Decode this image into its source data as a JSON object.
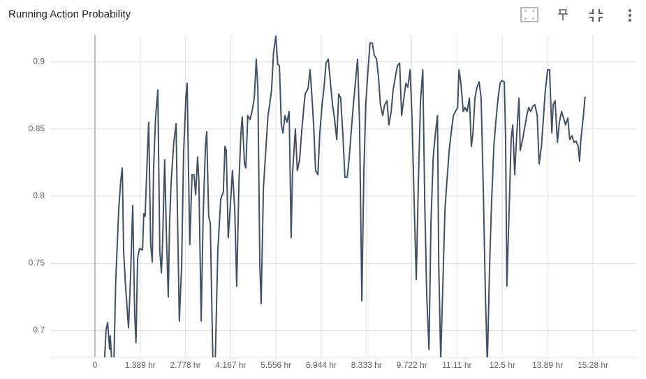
{
  "chart_data": {
    "type": "line",
    "title": "Running Action Probability",
    "color": "#425066",
    "grid": true,
    "xlim": [
      -1.37,
      16.63
    ],
    "ylim": [
      0.68,
      0.92
    ],
    "yticks": [
      0.7,
      0.75,
      0.8,
      0.85,
      0.9
    ],
    "xticks": [
      0,
      {
        "value": 1.389,
        "label": "1.389 hr"
      },
      {
        "value": 2.778,
        "label": "2.778 hr"
      },
      {
        "value": 4.167,
        "label": "4.167 hr"
      },
      {
        "value": 5.556,
        "label": "5.556 hr"
      },
      {
        "value": 6.944,
        "label": "6.944 hr"
      },
      {
        "value": 8.333,
        "label": "8.333 hr"
      },
      {
        "value": 9.722,
        "label": "9.722 hr"
      },
      {
        "value": 11.11,
        "label": "11.11 hr"
      },
      {
        "value": 12.5,
        "label": "12.5 hr"
      },
      {
        "value": 13.89,
        "label": "13.89 hr"
      },
      {
        "value": 15.28,
        "label": "15.28 hr"
      }
    ],
    "x": [
      0.3,
      0.34,
      0.39,
      0.45,
      0.47,
      0.51,
      0.58,
      0.64,
      0.73,
      0.79,
      0.84,
      0.88,
      0.94,
      1.03,
      1.09,
      1.16,
      1.22,
      1.26,
      1.31,
      1.37,
      1.46,
      1.5,
      1.54,
      1.61,
      1.65,
      1.71,
      1.76,
      1.8,
      1.86,
      1.93,
      1.99,
      2.04,
      2.08,
      2.14,
      2.19,
      2.25,
      2.29,
      2.34,
      2.42,
      2.49,
      2.53,
      2.59,
      2.66,
      2.72,
      2.79,
      2.83,
      2.87,
      2.91,
      2.98,
      3.04,
      3.09,
      3.15,
      3.19,
      3.26,
      3.32,
      3.39,
      3.43,
      3.49,
      3.54,
      3.62,
      3.69,
      3.77,
      3.86,
      3.94,
      3.99,
      4.03,
      4.09,
      4.16,
      4.22,
      4.29,
      4.35,
      4.42,
      4.48,
      4.52,
      4.59,
      4.63,
      4.69,
      4.76,
      4.82,
      4.89,
      4.95,
      5.0,
      5.06,
      5.1,
      5.17,
      5.25,
      5.31,
      5.36,
      5.42,
      5.48,
      5.55,
      5.61,
      5.66,
      5.72,
      5.77,
      5.83,
      5.89,
      5.96,
      6.02,
      6.06,
      6.15,
      6.21,
      6.28,
      6.34,
      6.41,
      6.45,
      6.54,
      6.6,
      6.64,
      6.71,
      6.77,
      6.84,
      6.9,
      6.97,
      7.03,
      7.09,
      7.16,
      7.22,
      7.29,
      7.35,
      7.42,
      7.48,
      7.54,
      7.61,
      7.67,
      7.74,
      7.8,
      7.87,
      7.93,
      7.99,
      8.06,
      8.12,
      8.19,
      8.25,
      8.31,
      8.38,
      8.44,
      8.51,
      8.57,
      8.64,
      8.7,
      8.76,
      8.83,
      8.89,
      8.96,
      9.02,
      9.09,
      9.15,
      9.22,
      9.28,
      9.35,
      9.41,
      9.48,
      9.54,
      9.6,
      9.67,
      9.73,
      9.8,
      9.86,
      9.93,
      9.99,
      10.06,
      10.12,
      10.18,
      10.25,
      10.31,
      10.38,
      10.44,
      10.51,
      10.55,
      10.61,
      10.68,
      10.74,
      10.8,
      10.87,
      10.93,
      11.0,
      11.06,
      11.13,
      11.17,
      11.23,
      11.3,
      11.36,
      11.42,
      11.49,
      11.55,
      11.6,
      11.66,
      11.72,
      11.79,
      11.85,
      11.92,
      11.98,
      12.04,
      12.11,
      12.17,
      12.24,
      12.3,
      12.37,
      12.43,
      12.49,
      12.56,
      12.6,
      12.64,
      12.71,
      12.77,
      12.82,
      12.88,
      12.94,
      13.01,
      13.05,
      13.12,
      13.18,
      13.25,
      13.31,
      13.37,
      13.44,
      13.5,
      13.57,
      13.63,
      13.7,
      13.76,
      13.82,
      13.89,
      13.95,
      14.02,
      14.06,
      14.12,
      14.19,
      14.25,
      14.32,
      14.38,
      14.44,
      14.51,
      14.57,
      14.64,
      14.7,
      14.76,
      14.83,
      14.87,
      14.91,
      14.98,
      15.04
    ],
    "values": [
      0.68,
      0.7,
      0.706,
      0.686,
      0.696,
      0.68,
      0.675,
      0.738,
      0.79,
      0.811,
      0.821,
      0.759,
      0.733,
      0.702,
      0.738,
      0.793,
      0.712,
      0.691,
      0.754,
      0.761,
      0.76,
      0.787,
      0.785,
      0.832,
      0.855,
      0.764,
      0.751,
      0.821,
      0.858,
      0.879,
      0.759,
      0.743,
      0.769,
      0.827,
      0.774,
      0.725,
      0.78,
      0.811,
      0.84,
      0.854,
      0.79,
      0.707,
      0.748,
      0.832,
      0.873,
      0.884,
      0.821,
      0.764,
      0.816,
      0.816,
      0.801,
      0.829,
      0.811,
      0.707,
      0.785,
      0.837,
      0.848,
      0.785,
      0.78,
      0.675,
      0.675,
      0.759,
      0.798,
      0.803,
      0.837,
      0.834,
      0.769,
      0.795,
      0.819,
      0.79,
      0.733,
      0.811,
      0.847,
      0.859,
      0.824,
      0.821,
      0.86,
      0.857,
      0.863,
      0.873,
      0.902,
      0.879,
      0.748,
      0.72,
      0.806,
      0.837,
      0.86,
      0.868,
      0.879,
      0.907,
      0.919,
      0.898,
      0.897,
      0.853,
      0.847,
      0.86,
      0.855,
      0.863,
      0.769,
      0.816,
      0.85,
      0.819,
      0.827,
      0.847,
      0.866,
      0.876,
      0.88,
      0.894,
      0.881,
      0.853,
      0.819,
      0.816,
      0.847,
      0.868,
      0.881,
      0.899,
      0.902,
      0.886,
      0.868,
      0.858,
      0.842,
      0.876,
      0.873,
      0.845,
      0.814,
      0.814,
      0.828,
      0.85,
      0.868,
      0.884,
      0.902,
      0.853,
      0.722,
      0.816,
      0.868,
      0.894,
      0.914,
      0.914,
      0.905,
      0.902,
      0.889,
      0.868,
      0.86,
      0.868,
      0.871,
      0.853,
      0.863,
      0.879,
      0.889,
      0.897,
      0.899,
      0.86,
      0.873,
      0.884,
      0.881,
      0.894,
      0.858,
      0.79,
      0.738,
      0.816,
      0.871,
      0.894,
      0.795,
      0.727,
      0.686,
      0.78,
      0.829,
      0.845,
      0.86,
      0.748,
      0.678,
      0.738,
      0.79,
      0.811,
      0.834,
      0.847,
      0.86,
      0.863,
      0.866,
      0.894,
      0.884,
      0.863,
      0.866,
      0.863,
      0.873,
      0.837,
      0.847,
      0.873,
      0.881,
      0.885,
      0.873,
      0.801,
      0.727,
      0.675,
      0.748,
      0.795,
      0.837,
      0.855,
      0.873,
      0.884,
      0.886,
      0.885,
      0.845,
      0.733,
      0.79,
      0.842,
      0.853,
      0.816,
      0.845,
      0.873,
      0.834,
      0.842,
      0.85,
      0.86,
      0.866,
      0.863,
      0.867,
      0.868,
      0.86,
      0.824,
      0.837,
      0.858,
      0.879,
      0.894,
      0.894,
      0.847,
      0.868,
      0.871,
      0.84,
      0.855,
      0.863,
      0.858,
      0.853,
      0.858,
      0.842,
      0.845,
      0.84,
      0.841,
      0.837,
      0.826,
      0.842,
      0.858,
      0.874
    ]
  }
}
